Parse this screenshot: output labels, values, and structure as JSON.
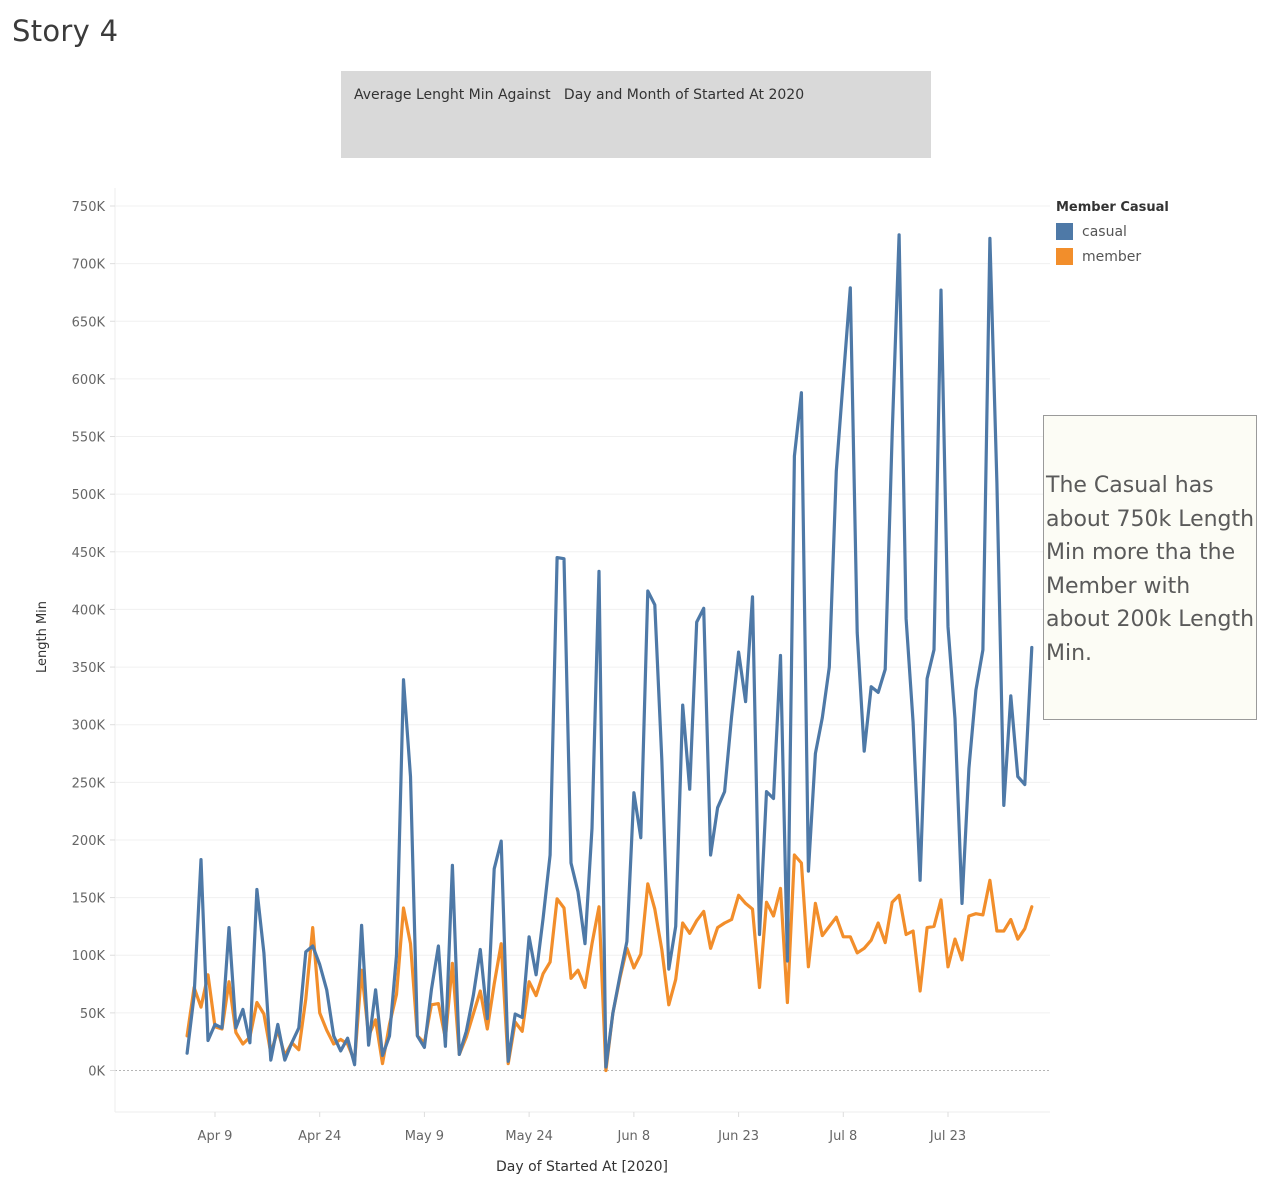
{
  "story": {
    "title": "Story 4"
  },
  "caption": {
    "text": "Average Lenght Min Against   Day and Month of Started At 2020"
  },
  "annotation": {
    "text": "The Casual has about 750k Length Min more tha the Member with about 200k Length Min."
  },
  "chart_data": {
    "type": "line",
    "title": "",
    "xlabel": "Day of Started At [2020]",
    "ylabel": "Length Min",
    "ylim": [
      0,
      750000
    ],
    "y_ticks": [
      0,
      50000,
      100000,
      150000,
      200000,
      250000,
      300000,
      350000,
      400000,
      450000,
      500000,
      550000,
      600000,
      650000,
      700000,
      750000
    ],
    "y_tick_labels": [
      "0K",
      "50K",
      "100K",
      "150K",
      "200K",
      "250K",
      "300K",
      "350K",
      "400K",
      "450K",
      "500K",
      "550K",
      "600K",
      "650K",
      "700K",
      "750K"
    ],
    "x_tick_labels": [
      "Apr 9",
      "Apr 24",
      "May 9",
      "May 24",
      "Jun 8",
      "Jun 23",
      "Jul 8",
      "Jul 23"
    ],
    "x_tick_days": [
      9,
      24,
      39,
      54,
      69,
      84,
      99,
      114
    ],
    "x_tick_dates": [
      "2020-04-09",
      "2020-04-24",
      "2020-05-09",
      "2020-05-24",
      "2020-06-08",
      "2020-06-23",
      "2020-07-08",
      "2020-07-23"
    ],
    "x_start_date": "2020-04-01",
    "x_end_date": "2020-07-31",
    "legend": {
      "title": "Member Casual",
      "position": "top-right"
    },
    "grid": true,
    "series": [
      {
        "name": "casual",
        "color": "#4e79a7",
        "values": [
          15000,
          65000,
          183000,
          26000,
          40000,
          37000,
          124000,
          37000,
          53000,
          24000,
          157000,
          102000,
          9000,
          40000,
          9000,
          24000,
          37000,
          103000,
          108000,
          92000,
          70000,
          30000,
          17000,
          28000,
          5000,
          126000,
          22000,
          70000,
          13000,
          30000,
          100000,
          339000,
          255000,
          30000,
          20000,
          70000,
          108000,
          21000,
          178000,
          14000,
          34000,
          65000,
          105000,
          45000,
          175000,
          199000,
          8000,
          49000,
          46000,
          116000,
          83000,
          132000,
          187000,
          445000,
          444000,
          180000,
          155000,
          110000,
          210000,
          433000,
          3000,
          50000,
          82000,
          112000,
          241000,
          202000,
          416000,
          404000,
          270000,
          88000,
          125000,
          317000,
          244000,
          389000,
          401000,
          187000,
          228000,
          242000,
          307000,
          363000,
          320000,
          411000,
          118000,
          242000,
          236000,
          360000,
          95000,
          533000,
          588000,
          173000,
          275000,
          306000,
          350000,
          520000,
          600000,
          679000,
          380000,
          277000,
          333000,
          328000,
          348000,
          553000,
          725000,
          392000,
          302000,
          165000,
          340000,
          365000,
          677000,
          385000,
          305000,
          145000,
          262000,
          330000,
          365000,
          722000,
          510000,
          230000,
          325000,
          255000,
          248000,
          367000
        ]
      },
      {
        "name": "member",
        "color": "#f28e2b",
        "values": [
          30000,
          72000,
          55000,
          83000,
          38000,
          36000,
          77000,
          33000,
          23000,
          29000,
          59000,
          49000,
          15000,
          35000,
          13000,
          24000,
          18000,
          62000,
          124000,
          50000,
          35000,
          23000,
          27000,
          23000,
          8000,
          87000,
          30000,
          44000,
          6000,
          40000,
          66000,
          141000,
          110000,
          30000,
          24000,
          57000,
          58000,
          28000,
          93000,
          14000,
          29000,
          49000,
          69000,
          36000,
          75000,
          110000,
          6000,
          42000,
          34000,
          77000,
          65000,
          84000,
          94000,
          149000,
          141000,
          80000,
          87000,
          72000,
          110000,
          142000,
          0,
          50000,
          80000,
          106000,
          89000,
          101000,
          162000,
          140000,
          105000,
          57000,
          79000,
          128000,
          119000,
          130000,
          138000,
          106000,
          124000,
          128000,
          131000,
          152000,
          145000,
          140000,
          72000,
          146000,
          134000,
          158000,
          59000,
          187000,
          180000,
          90000,
          145000,
          117000,
          125000,
          133000,
          116000,
          116000,
          102000,
          106000,
          113000,
          128000,
          111000,
          146000,
          152000,
          118000,
          121000,
          69000,
          124000,
          125000,
          148000,
          90000,
          114000,
          96000,
          134000,
          136000,
          135000,
          165000,
          121000,
          121000,
          131000,
          114000,
          123000,
          142000
        ]
      }
    ]
  }
}
